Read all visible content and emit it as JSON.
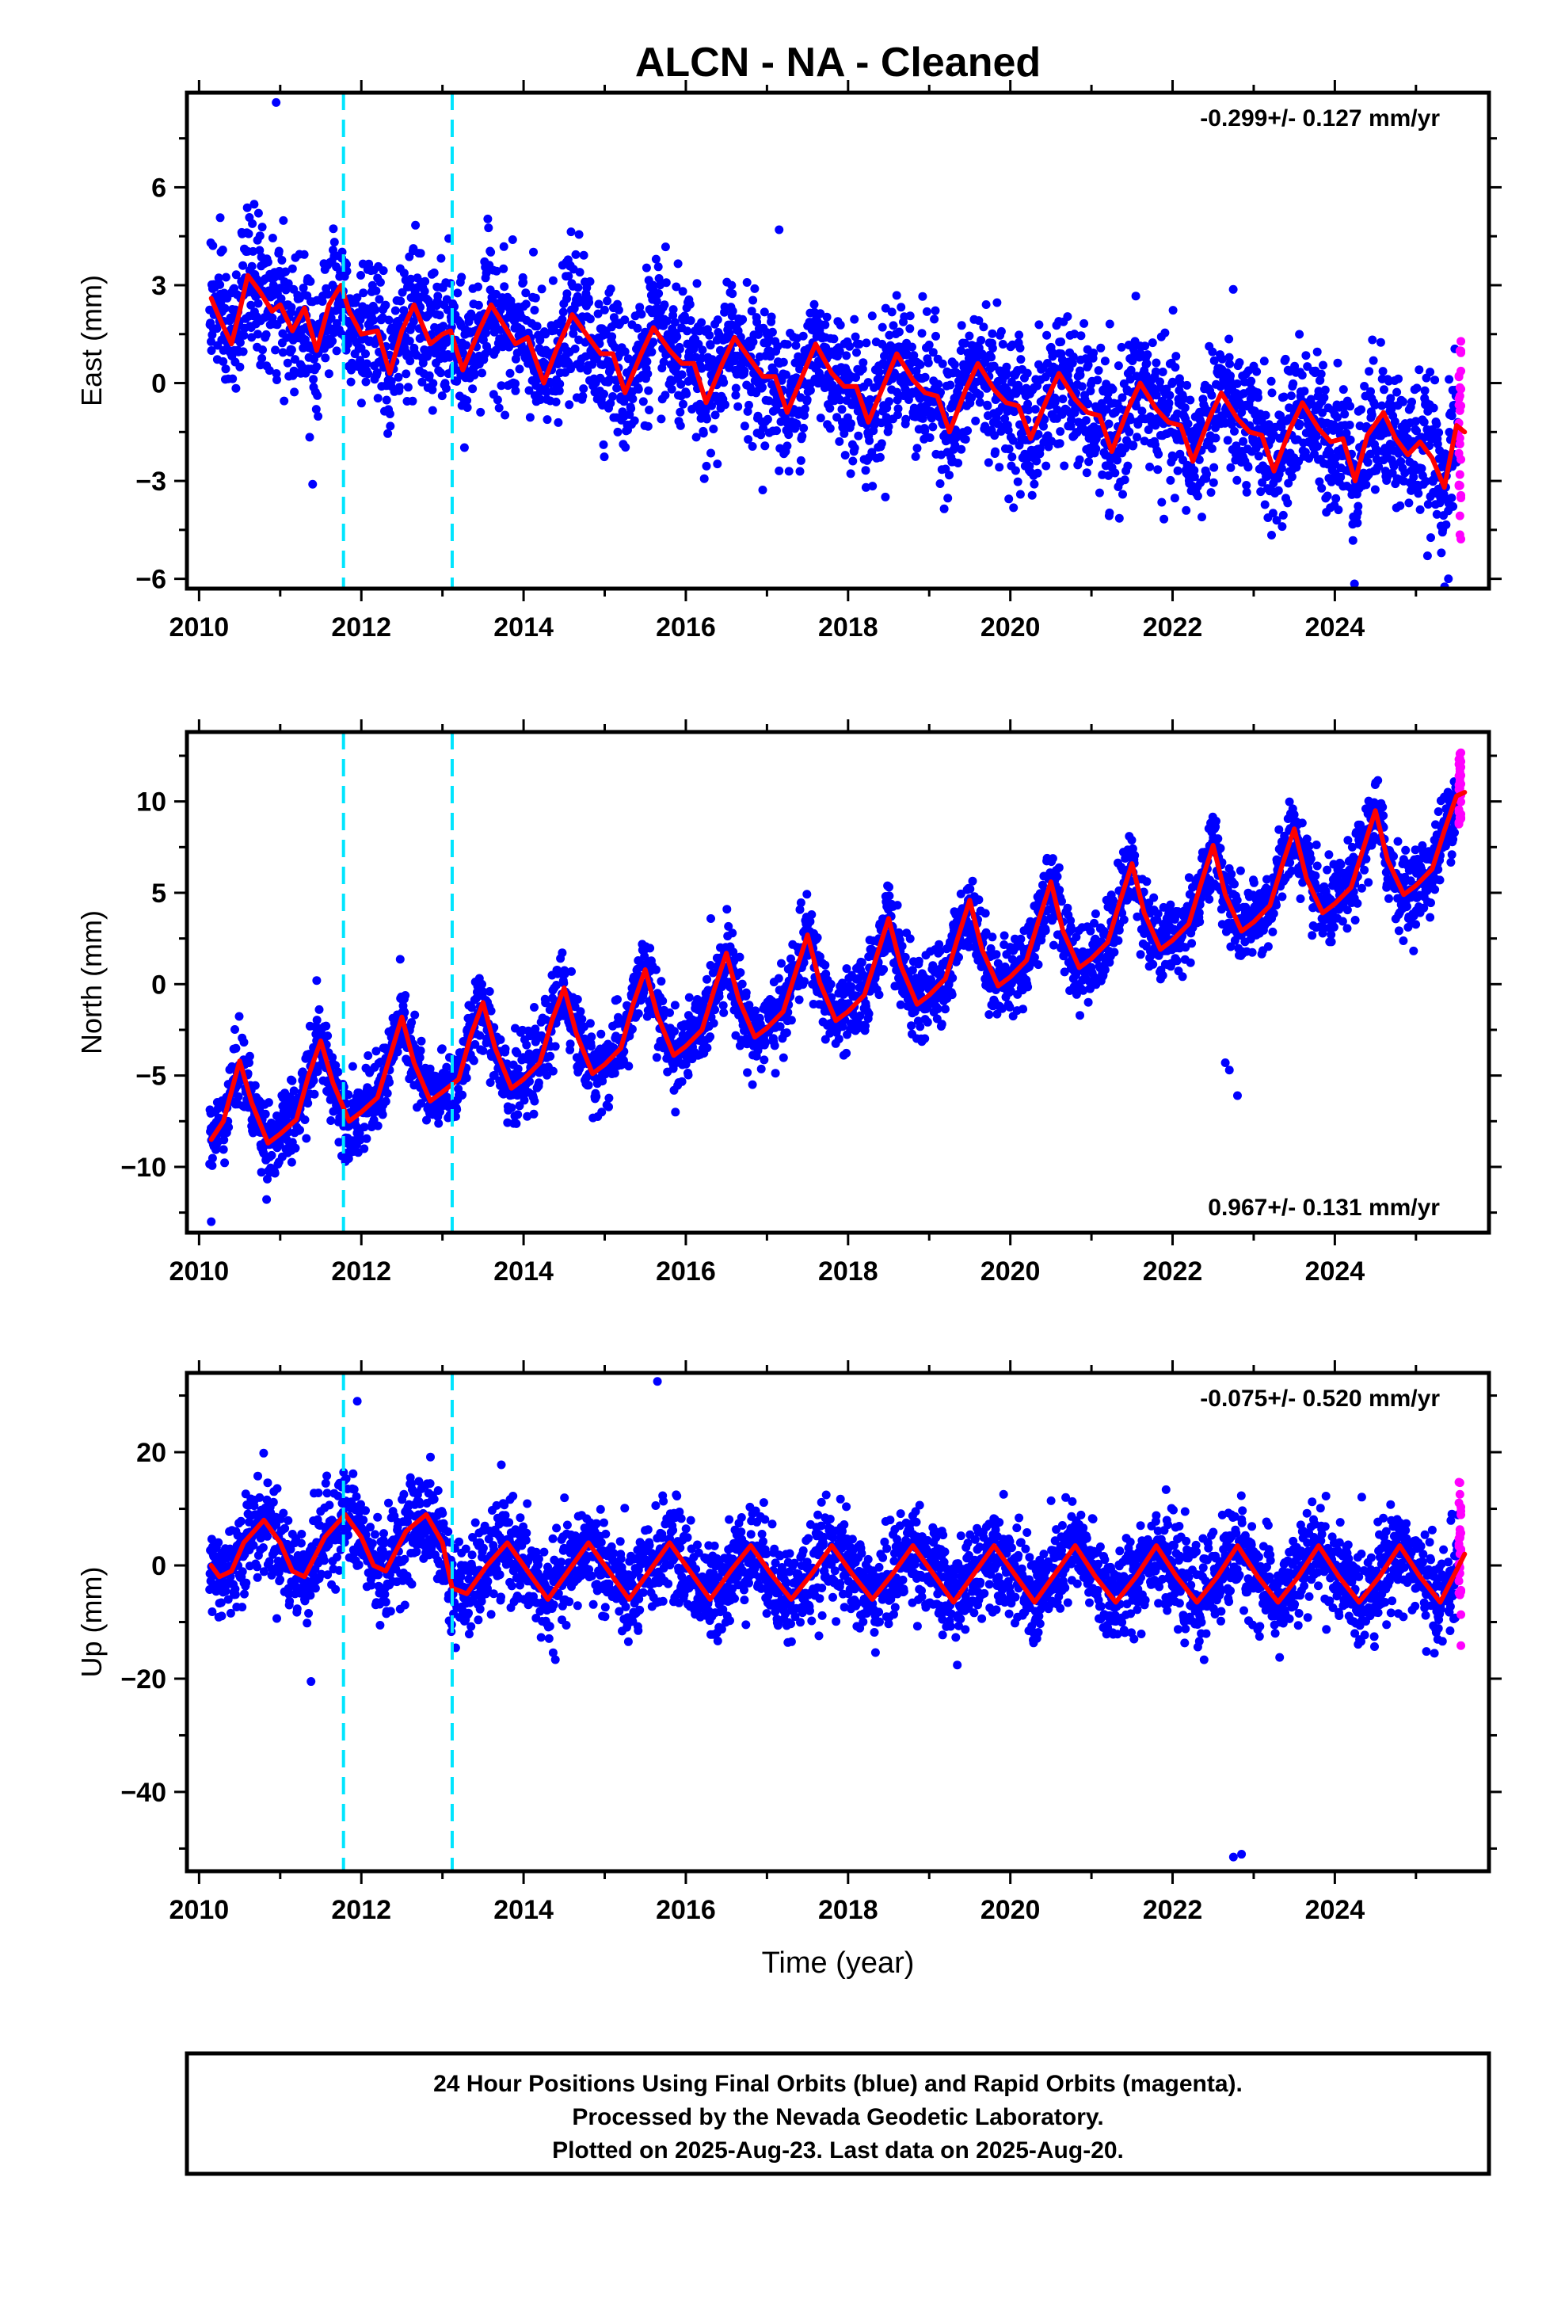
{
  "title": "ALCN  - NA - Cleaned",
  "xlabel": "Time (year)",
  "x_ticks": [
    2010,
    2012,
    2014,
    2016,
    2018,
    2020,
    2022,
    2024
  ],
  "x_range": [
    2009.85,
    2025.9
  ],
  "colors": {
    "final_orbits": "#0000ff",
    "rapid_orbits": "#ff00ff",
    "model": "#ff0000",
    "offsets": "#00e5ff",
    "frame": "#000000"
  },
  "offset_epochs": [
    2011.78,
    2013.12
  ],
  "chart_data": [
    {
      "type": "scatter",
      "component": "east",
      "ylabel": "East (mm)",
      "y_ticks": [
        -6,
        -3,
        0,
        3,
        6
      ],
      "ylim": [
        -6.3,
        8.9
      ],
      "rate_label": "-0.299+/- 0.127 mm/yr",
      "rate_position": "top-right",
      "model": {
        "x": [
          2010.15,
          2010.25,
          2010.4,
          2010.5,
          2010.6,
          2010.75,
          2010.9,
          2011.0,
          2011.15,
          2011.3,
          2011.45,
          2011.6,
          2011.75,
          2011.85,
          2012.0,
          2012.2,
          2012.35,
          2012.5,
          2012.65,
          2012.85,
          2013.0,
          2013.1,
          2013.25,
          2013.45,
          2013.6,
          2013.75,
          2013.9,
          2014.05,
          2014.25,
          2014.4,
          2014.6,
          2014.8,
          2014.95,
          2015.1,
          2015.25,
          2015.45,
          2015.6,
          2015.8,
          2015.95,
          2016.1,
          2016.25,
          2016.45,
          2016.6,
          2016.8,
          2016.95,
          2017.1,
          2017.25,
          2017.45,
          2017.6,
          2017.8,
          2017.95,
          2018.1,
          2018.25,
          2018.45,
          2018.6,
          2018.8,
          2018.95,
          2019.1,
          2019.25,
          2019.45,
          2019.6,
          2019.8,
          2019.95,
          2020.1,
          2020.25,
          2020.45,
          2020.6,
          2020.8,
          2020.95,
          2021.1,
          2021.25,
          2021.45,
          2021.6,
          2021.8,
          2021.95,
          2022.1,
          2022.25,
          2022.45,
          2022.6,
          2022.8,
          2022.95,
          2023.1,
          2023.25,
          2023.45,
          2023.6,
          2023.8,
          2023.95,
          2024.1,
          2024.25,
          2024.4,
          2024.6,
          2024.75,
          2024.9,
          2025.05,
          2025.2,
          2025.35,
          2025.5,
          2025.6
        ],
        "y": [
          2.6,
          2.0,
          1.2,
          2.2,
          3.3,
          2.8,
          2.2,
          2.4,
          1.6,
          2.3,
          1.0,
          2.4,
          3.0,
          2.2,
          1.5,
          1.6,
          0.3,
          1.6,
          2.4,
          1.2,
          1.5,
          1.6,
          0.4,
          1.6,
          2.4,
          1.8,
          1.2,
          1.4,
          0.0,
          1.0,
          2.1,
          1.4,
          0.9,
          0.9,
          -0.3,
          0.9,
          1.7,
          1.0,
          0.6,
          0.6,
          -0.6,
          0.6,
          1.4,
          0.7,
          0.2,
          0.2,
          -0.9,
          0.3,
          1.2,
          0.3,
          -0.1,
          -0.1,
          -1.2,
          0.0,
          0.9,
          0.1,
          -0.3,
          -0.4,
          -1.5,
          -0.2,
          0.6,
          -0.2,
          -0.6,
          -0.7,
          -1.7,
          -0.5,
          0.3,
          -0.5,
          -0.9,
          -1.0,
          -2.1,
          -0.8,
          0.0,
          -0.8,
          -1.2,
          -1.3,
          -2.4,
          -1.1,
          -0.3,
          -1.1,
          -1.5,
          -1.6,
          -2.7,
          -1.4,
          -0.6,
          -1.4,
          -1.8,
          -1.7,
          -3.0,
          -1.6,
          -0.9,
          -1.7,
          -2.2,
          -1.8,
          -2.3,
          -3.2,
          -1.3,
          -1.5
        ]
      }
    },
    {
      "type": "scatter",
      "component": "north",
      "ylabel": "North (mm)",
      "y_ticks": [
        -10,
        -5,
        0,
        5,
        10
      ],
      "ylim": [
        -13.6,
        13.8
      ],
      "rate_label": "0.967+/- 0.131 mm/yr",
      "rate_position": "bottom-right",
      "model": {
        "x": [
          2010.15,
          2010.3,
          2010.5,
          2010.65,
          2010.85,
          2011.0,
          2011.2,
          2011.35,
          2011.5,
          2011.65,
          2011.85,
          2012.0,
          2012.2,
          2012.35,
          2012.5,
          2012.65,
          2012.85,
          2013.0,
          2013.2,
          2013.35,
          2013.5,
          2013.65,
          2013.85,
          2014.0,
          2014.2,
          2014.35,
          2014.5,
          2014.65,
          2014.85,
          2015.0,
          2015.2,
          2015.35,
          2015.5,
          2015.65,
          2015.85,
          2016.0,
          2016.2,
          2016.35,
          2016.5,
          2016.65,
          2016.85,
          2017.0,
          2017.2,
          2017.35,
          2017.5,
          2017.65,
          2017.85,
          2018.0,
          2018.2,
          2018.35,
          2018.5,
          2018.65,
          2018.85,
          2019.0,
          2019.2,
          2019.35,
          2019.5,
          2019.65,
          2019.85,
          2020.0,
          2020.2,
          2020.35,
          2020.5,
          2020.65,
          2020.85,
          2021.0,
          2021.2,
          2021.35,
          2021.5,
          2021.65,
          2021.85,
          2022.0,
          2022.2,
          2022.35,
          2022.5,
          2022.65,
          2022.85,
          2023.0,
          2023.2,
          2023.35,
          2023.5,
          2023.65,
          2023.85,
          2024.0,
          2024.2,
          2024.35,
          2024.5,
          2024.65,
          2024.85,
          2025.0,
          2025.2,
          2025.35,
          2025.5,
          2025.6
        ],
        "y": [
          -8.5,
          -7.5,
          -4.2,
          -6.5,
          -8.7,
          -8.2,
          -7.4,
          -5.0,
          -3.1,
          -5.4,
          -7.5,
          -7.0,
          -6.2,
          -4.0,
          -1.8,
          -4.3,
          -6.4,
          -5.9,
          -5.2,
          -2.8,
          -1.0,
          -3.5,
          -5.7,
          -5.2,
          -4.3,
          -2.0,
          -0.2,
          -2.7,
          -4.9,
          -4.4,
          -3.5,
          -1.1,
          0.8,
          -1.7,
          -3.9,
          -3.4,
          -2.5,
          -0.3,
          1.7,
          -0.8,
          -2.9,
          -2.4,
          -1.5,
          0.6,
          2.7,
          0.1,
          -2.0,
          -1.5,
          -0.6,
          1.5,
          3.6,
          1.0,
          -1.1,
          -0.6,
          0.3,
          2.5,
          4.6,
          1.9,
          -0.1,
          0.4,
          1.3,
          3.5,
          5.6,
          2.9,
          0.9,
          1.4,
          2.3,
          4.5,
          6.6,
          3.9,
          1.9,
          2.4,
          3.3,
          5.5,
          7.6,
          4.9,
          2.9,
          3.4,
          4.3,
          6.5,
          8.5,
          5.8,
          3.9,
          4.4,
          5.3,
          7.4,
          9.5,
          6.8,
          4.9,
          5.4,
          6.3,
          8.4,
          10.3,
          10.5
        ]
      }
    },
    {
      "type": "scatter",
      "component": "up",
      "ylabel": "Up (mm)",
      "y_ticks": [
        -40,
        -20,
        0,
        20
      ],
      "ylim": [
        -54,
        34
      ],
      "rate_label": "-0.075+/- 0.520 mm/yr",
      "rate_position": "top-right",
      "model": {
        "x": [
          2010.15,
          2010.25,
          2010.4,
          2010.55,
          2010.8,
          2011.0,
          2011.15,
          2011.3,
          2011.55,
          2011.8,
          2012.0,
          2012.15,
          2012.3,
          2012.55,
          2012.8,
          2013.0,
          2013.12,
          2013.3,
          2013.55,
          2013.8,
          2014.05,
          2014.3,
          2014.55,
          2014.8,
          2015.05,
          2015.3,
          2015.55,
          2015.8,
          2016.05,
          2016.3,
          2016.55,
          2016.8,
          2017.05,
          2017.3,
          2017.55,
          2017.8,
          2018.05,
          2018.3,
          2018.55,
          2018.8,
          2019.05,
          2019.3,
          2019.55,
          2019.8,
          2020.05,
          2020.3,
          2020.55,
          2020.8,
          2021.05,
          2021.3,
          2021.55,
          2021.8,
          2022.05,
          2022.3,
          2022.55,
          2022.8,
          2023.05,
          2023.3,
          2023.55,
          2023.8,
          2024.05,
          2024.3,
          2024.55,
          2024.8,
          2025.05,
          2025.3,
          2025.6
        ],
        "y": [
          0.0,
          -2.0,
          -1.0,
          4.0,
          8.0,
          4.0,
          -1.0,
          -2.0,
          5.0,
          9.0,
          5.0,
          0.0,
          -1.0,
          6.0,
          9.0,
          4.0,
          -4.0,
          -5.0,
          0.0,
          4.0,
          -1.0,
          -6.0,
          -1.0,
          4.0,
          -1.0,
          -6.0,
          -1.0,
          4.0,
          -1.0,
          -6.0,
          -1.0,
          3.5,
          -1.5,
          -6.0,
          -1.5,
          3.5,
          -1.5,
          -6.0,
          -1.5,
          3.5,
          -1.5,
          -6.5,
          -1.5,
          3.5,
          -1.5,
          -6.5,
          -1.5,
          3.5,
          -2.0,
          -6.5,
          -2.0,
          3.5,
          -2.0,
          -6.5,
          -2.0,
          3.5,
          -2.0,
          -6.5,
          -2.0,
          3.5,
          -2.0,
          -6.5,
          -2.0,
          3.5,
          -2.0,
          -6.5,
          2.0
        ]
      }
    }
  ],
  "outliers": {
    "north": [
      {
        "x": 2022.65,
        "y": -4.3
      },
      {
        "x": 2022.7,
        "y": -4.7
      },
      {
        "x": 2022.8,
        "y": -6.1
      },
      {
        "x": 2011.45,
        "y": 0.2
      },
      {
        "x": 2010.15,
        "y": -13.0
      }
    ],
    "up": [
      {
        "x": 2022.75,
        "y": -51.5
      },
      {
        "x": 2022.85,
        "y": -51.0
      },
      {
        "x": 2011.38,
        "y": -20.5
      },
      {
        "x": 2015.65,
        "y": 32.5
      },
      {
        "x": 2011.95,
        "y": 29.0
      }
    ],
    "east": [
      {
        "x": 2010.95,
        "y": 8.6
      },
      {
        "x": 2011.4,
        "y": -3.1
      },
      {
        "x": 2025.4,
        "y": -6.0
      },
      {
        "x": 2017.15,
        "y": 4.7
      }
    ]
  },
  "footer": {
    "line1": "24 Hour Positions Using Final Orbits (blue) and Rapid Orbits (magenta).",
    "line2": "Processed by the Nevada Geodetic Laboratory.",
    "line3": "Plotted on 2025-Aug-23. Last data on 2025-Aug-20."
  }
}
